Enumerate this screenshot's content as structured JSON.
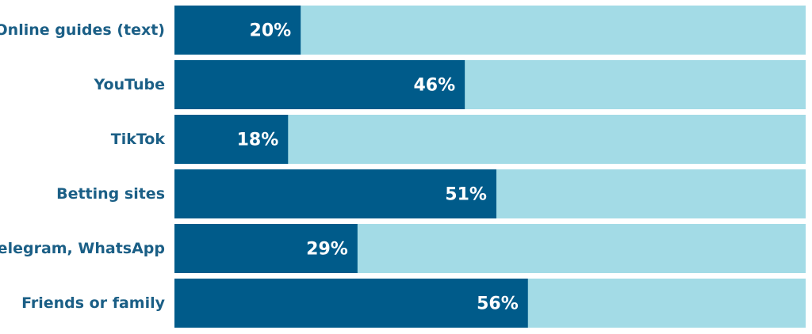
{
  "colors": {
    "bar": "#005b8a",
    "track": "#a3dbe6",
    "label_text": "#1b5f86",
    "value_text": "#ffffff",
    "background": "#ffffff"
  },
  "chart_data": {
    "type": "bar",
    "orientation": "horizontal",
    "stacked_to_100": true,
    "categories": [
      "Online guides (text)",
      "YouTube",
      "TikTok",
      "Betting sites",
      "Telegram, WhatsApp",
      "Friends or family"
    ],
    "values": [
      20,
      46,
      18,
      51,
      29,
      56
    ],
    "value_labels": [
      "20%",
      "46%",
      "18%",
      "51%",
      "29%",
      "56%"
    ],
    "xlim": [
      0,
      100
    ],
    "grid": false,
    "legend": "none"
  }
}
